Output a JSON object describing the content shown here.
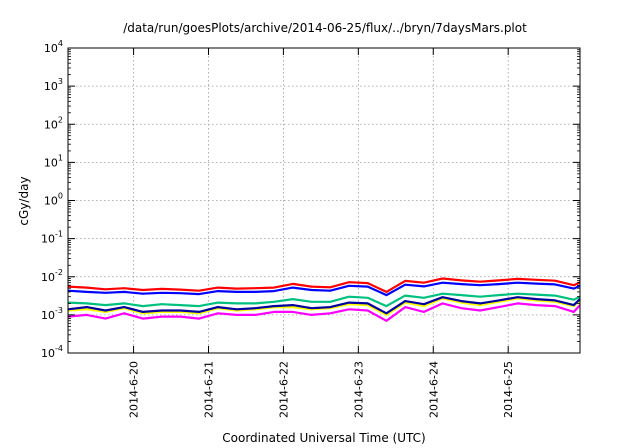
{
  "chart_data": {
    "type": "line",
    "title": "/data/run/goesPlots/archive/2014-06-25/flux/../bryn/7daysMars.plot",
    "xlabel": "Coordinated Universal Time (UTC)",
    "ylabel": "cGy/day",
    "yscale": "log",
    "ylim": [
      0.0001,
      10000
    ],
    "xlim": [
      "2014-06-19T03:00",
      "2014-06-25T23:00"
    ],
    "grid": true,
    "legend": "none",
    "y_ticks": [
      {
        "base": "10",
        "exp": "-4"
      },
      {
        "base": "10",
        "exp": "-3"
      },
      {
        "base": "10",
        "exp": "-2"
      },
      {
        "base": "10",
        "exp": "-1"
      },
      {
        "base": "10",
        "exp": "0"
      },
      {
        "base": "10",
        "exp": "1"
      },
      {
        "base": "10",
        "exp": "2"
      },
      {
        "base": "10",
        "exp": "3"
      },
      {
        "base": "10",
        "exp": "4"
      }
    ],
    "x_ticks": [
      "2014-6-20",
      "2014-6-21",
      "2014-6-22",
      "2014-6-23",
      "2014-6-24",
      "2014-6-25"
    ],
    "x_tick_dates": [
      "2014-06-20T00:00",
      "2014-06-21T00:00",
      "2014-06-22T00:00",
      "2014-06-23T00:00",
      "2014-06-24T00:00",
      "2014-06-25T00:00"
    ],
    "x": [
      "2014-06-19T03:00",
      "2014-06-19T09:00",
      "2014-06-19T15:00",
      "2014-06-19T21:00",
      "2014-06-20T03:00",
      "2014-06-20T09:00",
      "2014-06-20T15:00",
      "2014-06-20T21:00",
      "2014-06-21T03:00",
      "2014-06-21T09:00",
      "2014-06-21T15:00",
      "2014-06-21T21:00",
      "2014-06-22T03:00",
      "2014-06-22T09:00",
      "2014-06-22T15:00",
      "2014-06-22T21:00",
      "2014-06-23T03:00",
      "2014-06-23T09:00",
      "2014-06-23T15:00",
      "2014-06-23T21:00",
      "2014-06-24T03:00",
      "2014-06-24T09:00",
      "2014-06-24T15:00",
      "2014-06-24T21:00",
      "2014-06-25T03:00",
      "2014-06-25T09:00",
      "2014-06-25T15:00",
      "2014-06-25T21:00",
      "2014-06-25T23:00"
    ],
    "series": [
      {
        "color": "#ff0000",
        "values": [
          0.0055,
          0.0052,
          0.0047,
          0.005,
          0.0045,
          0.0048,
          0.0046,
          0.0043,
          0.0052,
          0.0049,
          0.005,
          0.0052,
          0.0065,
          0.0055,
          0.0053,
          0.0072,
          0.0068,
          0.004,
          0.0078,
          0.007,
          0.009,
          0.008,
          0.0074,
          0.008,
          0.0088,
          0.0083,
          0.0079,
          0.006,
          0.0072
        ]
      },
      {
        "color": "#0000ff",
        "values": [
          0.0043,
          0.004,
          0.0038,
          0.004,
          0.0036,
          0.0038,
          0.0037,
          0.0035,
          0.0042,
          0.004,
          0.004,
          0.0042,
          0.0052,
          0.0045,
          0.0043,
          0.0058,
          0.0055,
          0.0033,
          0.0062,
          0.0056,
          0.007,
          0.0064,
          0.006,
          0.0064,
          0.007,
          0.0066,
          0.0063,
          0.0049,
          0.0058
        ]
      },
      {
        "color": "#ff00ff",
        "values": [
          0.0009,
          0.001,
          0.0008,
          0.0011,
          0.0008,
          0.0009,
          0.0009,
          0.0008,
          0.0011,
          0.001,
          0.001,
          0.0012,
          0.0012,
          0.001,
          0.0011,
          0.0014,
          0.0013,
          0.0007,
          0.0016,
          0.0012,
          0.002,
          0.0015,
          0.0013,
          0.0016,
          0.002,
          0.0018,
          0.0017,
          0.0012,
          0.0018
        ]
      },
      {
        "color": "#ffff00",
        "values": [
          0.0013,
          0.0014,
          0.0012,
          0.0015,
          0.0011,
          0.0012,
          0.0012,
          0.0011,
          0.0015,
          0.0013,
          0.0014,
          0.0016,
          0.0016,
          0.0014,
          0.0015,
          0.0019,
          0.0018,
          0.001,
          0.0021,
          0.0017,
          0.0027,
          0.0021,
          0.0018,
          0.0022,
          0.0027,
          0.0024,
          0.0022,
          0.0017,
          0.0024
        ]
      },
      {
        "color": "#0000a0",
        "values": [
          0.0014,
          0.0016,
          0.0013,
          0.0016,
          0.0012,
          0.0013,
          0.0013,
          0.0012,
          0.0016,
          0.0014,
          0.0015,
          0.0017,
          0.0018,
          0.0015,
          0.0016,
          0.0021,
          0.002,
          0.0011,
          0.0023,
          0.0019,
          0.0029,
          0.0023,
          0.002,
          0.0024,
          0.0029,
          0.0026,
          0.0024,
          0.0018,
          0.0026
        ]
      },
      {
        "color": "#00c080",
        "values": [
          0.0021,
          0.002,
          0.0018,
          0.002,
          0.0017,
          0.0019,
          0.0018,
          0.0017,
          0.0021,
          0.002,
          0.002,
          0.0022,
          0.0026,
          0.0022,
          0.0022,
          0.003,
          0.0028,
          0.0017,
          0.0032,
          0.0028,
          0.0036,
          0.0033,
          0.003,
          0.0033,
          0.0036,
          0.0034,
          0.0032,
          0.0025,
          0.003
        ]
      }
    ]
  }
}
